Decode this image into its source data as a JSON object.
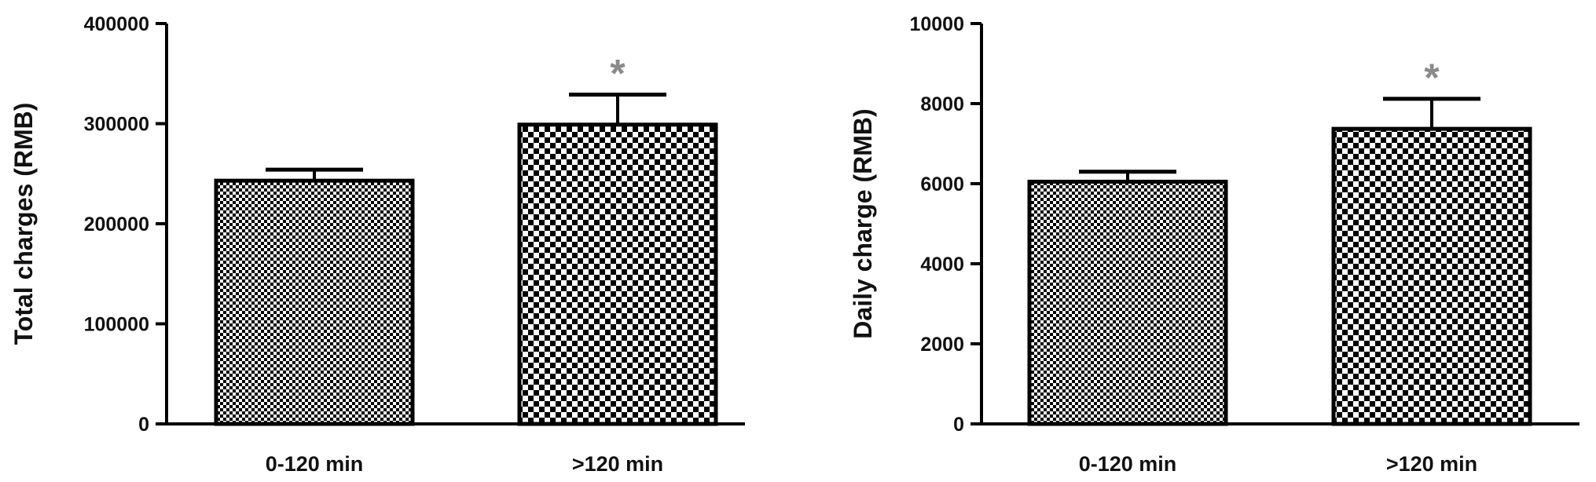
{
  "chart_data": [
    {
      "type": "bar",
      "categories": [
        "0-120 min",
        ">120 min"
      ],
      "values": [
        243000,
        299000
      ],
      "error_upper": [
        254000,
        329000
      ],
      "significance": [
        "",
        "*"
      ],
      "ylabel": "Total charges (RMB)",
      "xlabel": "",
      "ylim": [
        0,
        400000
      ],
      "yticks": [
        0,
        100000,
        200000,
        300000,
        400000
      ],
      "ytick_labels": [
        "0",
        "100000",
        "200000",
        "300000",
        "400000"
      ],
      "grid": false,
      "patterns": [
        "fine-checker",
        "coarse-checker"
      ],
      "bar_fill": "#000000",
      "bar_bg": "#ffffff",
      "sig_color": "#8a8a8a"
    },
    {
      "type": "bar",
      "categories": [
        "0-120 min",
        ">120 min"
      ],
      "values": [
        6050,
        7370
      ],
      "error_upper": [
        6300,
        8120
      ],
      "significance": [
        "",
        "*"
      ],
      "ylabel": "Daily charge (RMB)",
      "xlabel": "",
      "ylim": [
        0,
        10000
      ],
      "yticks": [
        0,
        2000,
        4000,
        6000,
        8000,
        10000
      ],
      "ytick_labels": [
        "0",
        "2000",
        "4000",
        "6000",
        "8000",
        "10000"
      ],
      "grid": false,
      "patterns": [
        "fine-checker",
        "coarse-checker"
      ],
      "bar_fill": "#000000",
      "bar_bg": "#ffffff",
      "sig_color": "#8a8a8a"
    }
  ]
}
